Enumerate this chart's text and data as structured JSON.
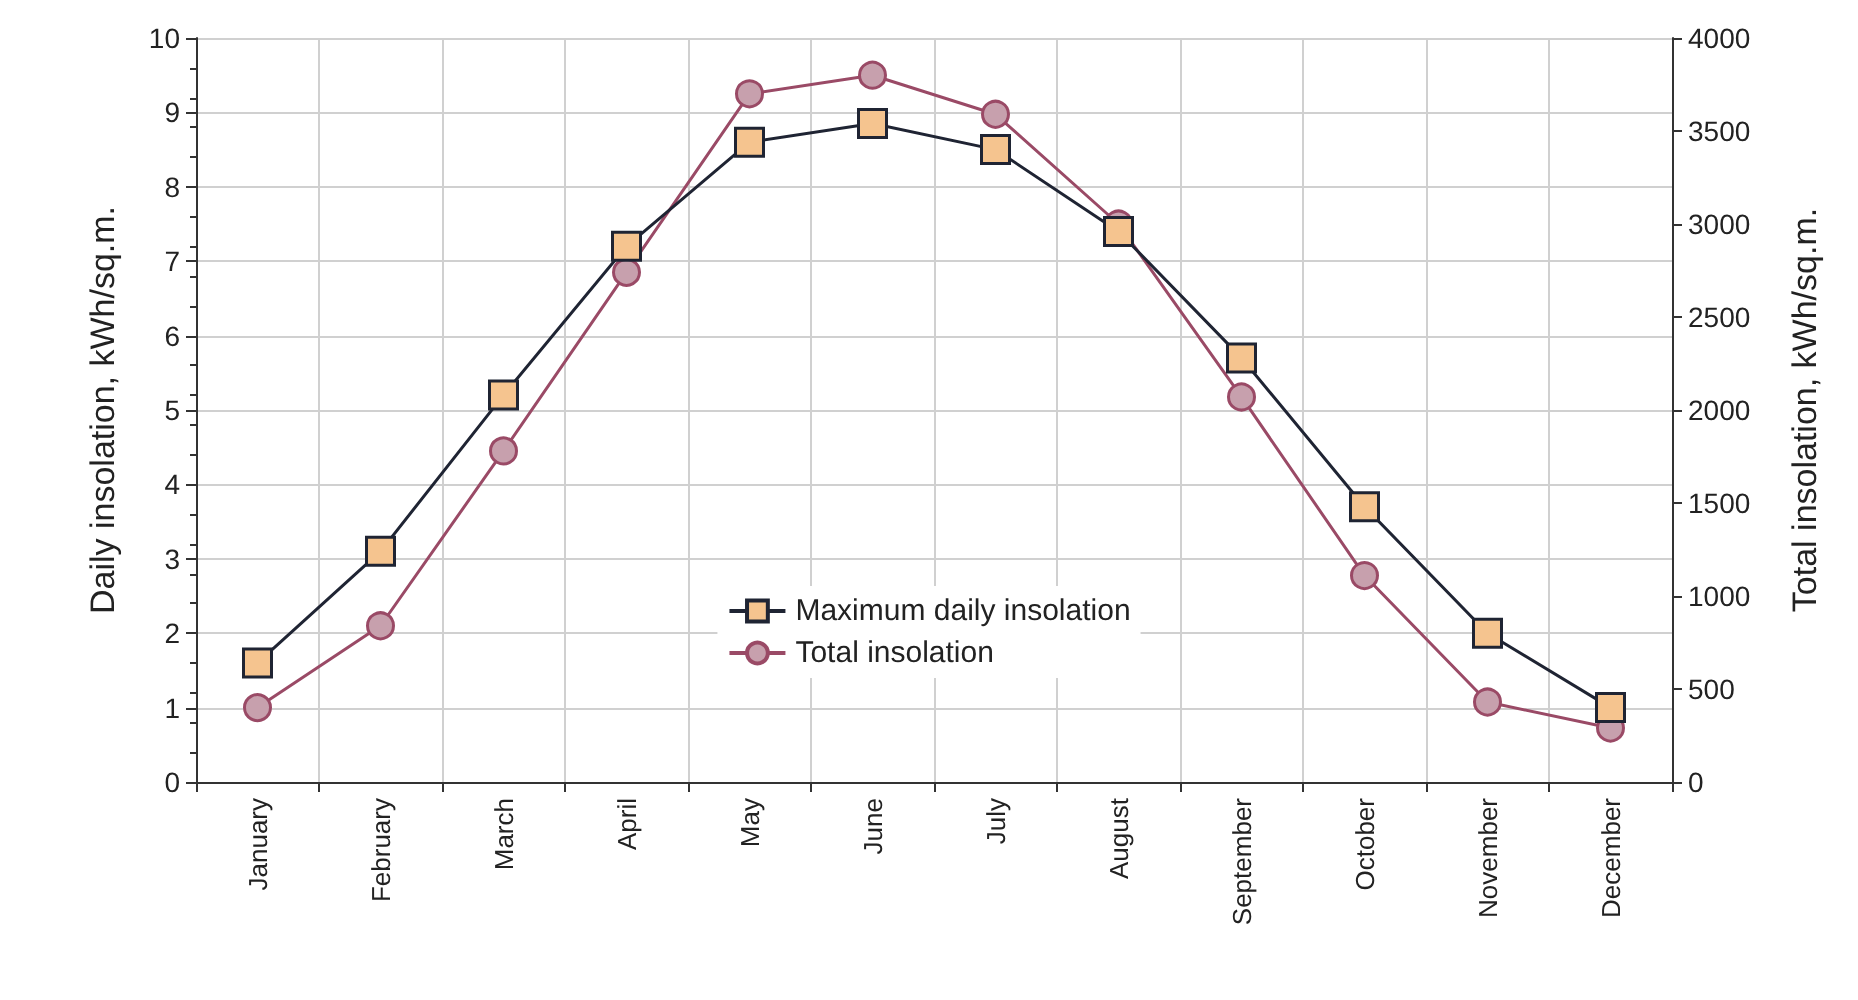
{
  "chart_data": {
    "type": "line",
    "categories": [
      "January",
      "February",
      "March",
      "April",
      "May",
      "June",
      "July",
      "August",
      "September",
      "October",
      "November",
      "December"
    ],
    "ylabel": "Daily insolation, kWh/sq.m.",
    "y2label": "Total insolation, kWh/sq.m.",
    "ylim": [
      0,
      10
    ],
    "yticks": [
      0,
      1,
      2,
      3,
      4,
      5,
      6,
      7,
      8,
      9,
      10
    ],
    "y2lim": [
      0,
      4000
    ],
    "y2ticks": [
      0,
      500,
      1000,
      1500,
      2000,
      2500,
      3000,
      3500,
      4000
    ],
    "grid": true,
    "legend": "bottom",
    "line_style": "solid",
    "series": [
      {
        "name": "Maximum daily insolation",
        "color": "#1f2433",
        "marker": "square",
        "values": [
          1.6,
          3.1,
          5.2,
          7.2,
          8.6,
          8.85,
          8.5,
          7.4,
          5.7,
          3.7,
          2.0,
          1.0
        ]
      },
      {
        "name": "Total insolation",
        "color": "#9a4a66",
        "marker": "circle",
        "axis": "y2",
        "values": [
          400,
          840,
          1780,
          2740,
          3700,
          3800,
          3590,
          3000,
          2070,
          1110,
          430,
          290
        ]
      }
    ]
  }
}
